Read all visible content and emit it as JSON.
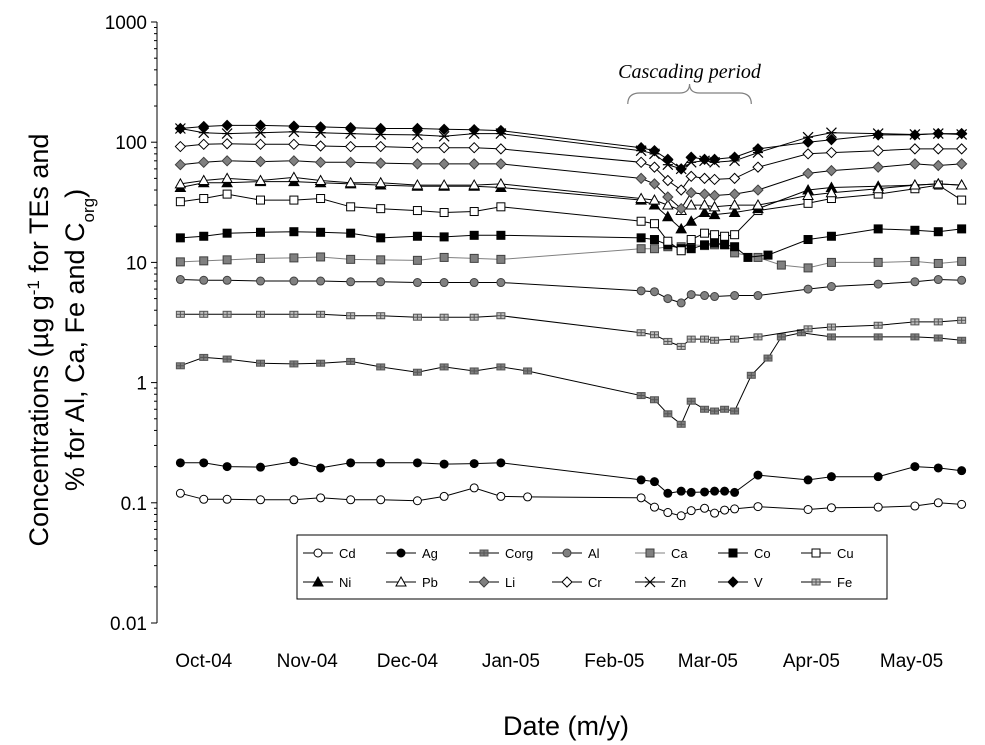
{
  "chart_data": {
    "type": "line",
    "title": "",
    "xlabel": "Date (m/y)",
    "ylabel": {
      "line1_a": "Concentrations (µg g",
      "line1_sup": "-1",
      "line1_b": " for TEs and",
      "line2_a": "% for Al, Ca, Fe and C",
      "line2_sub": "org",
      "line2_b": ")"
    },
    "y_scale": "log",
    "ylim": [
      0.01,
      1000
    ],
    "y_ticks": [
      {
        "value": 0.01,
        "label": "0.01"
      },
      {
        "value": 0.1,
        "label": "0.1"
      },
      {
        "value": 1,
        "label": "1"
      },
      {
        "value": 10,
        "label": "10"
      },
      {
        "value": 100,
        "label": "100"
      },
      {
        "value": 1000,
        "label": "1000"
      }
    ],
    "xlim": [
      "2004-09-24",
      "2005-05-27"
    ],
    "x_ticks": [
      {
        "date": "2004-10-08",
        "label": "Oct-04"
      },
      {
        "date": "2004-11-08",
        "label": "Nov-04"
      },
      {
        "date": "2004-12-08",
        "label": "Dec-04"
      },
      {
        "date": "2005-01-08",
        "label": "Jan-05"
      },
      {
        "date": "2005-02-08",
        "label": "Feb-05"
      },
      {
        "date": "2005-03-08",
        "label": "Mar-05"
      },
      {
        "date": "2005-04-08",
        "label": "Apr-05"
      },
      {
        "date": "2005-05-08",
        "label": "May-05"
      }
    ],
    "annotation": {
      "text": "Cascading period",
      "start": "2005-02-12",
      "end": "2005-03-21"
    },
    "legend_position": "bottom-inside",
    "series": [
      {
        "name": "Cd",
        "marker": "circle",
        "fill": "#ffffff",
        "stroke": "#000000",
        "line": "#000000",
        "x": [
          "2004-10-01",
          "2004-10-08",
          "2004-10-15",
          "2004-10-25",
          "2004-11-04",
          "2004-11-12",
          "2004-11-21",
          "2004-11-30",
          "2004-12-11",
          "2004-12-19",
          "2004-12-28",
          "2005-01-05",
          "2005-01-13",
          "2005-02-16",
          "2005-02-20",
          "2005-02-24",
          "2005-02-28",
          "2005-03-03",
          "2005-03-07",
          "2005-03-10",
          "2005-03-13",
          "2005-03-16",
          "2005-03-23",
          "2005-04-07",
          "2005-04-14",
          "2005-04-28",
          "2005-05-09",
          "2005-05-16",
          "2005-05-23"
        ],
        "y": [
          0.12,
          0.107,
          0.107,
          0.106,
          0.106,
          0.11,
          0.106,
          0.106,
          0.104,
          0.113,
          0.133,
          0.113,
          0.112,
          0.11,
          0.092,
          0.083,
          0.078,
          0.086,
          0.09,
          0.082,
          0.087,
          0.089,
          0.093,
          0.088,
          0.091,
          0.092,
          0.094,
          0.1,
          0.097
        ]
      },
      {
        "name": "Ag",
        "marker": "circle",
        "fill": "#000000",
        "stroke": "#000000",
        "line": "#000000",
        "x": [
          "2004-10-01",
          "2004-10-08",
          "2004-10-15",
          "2004-10-25",
          "2004-11-04",
          "2004-11-12",
          "2004-11-21",
          "2004-11-30",
          "2004-12-11",
          "2004-12-19",
          "2004-12-28",
          "2005-01-05",
          "2005-02-16",
          "2005-02-20",
          "2005-02-24",
          "2005-02-28",
          "2005-03-03",
          "2005-03-07",
          "2005-03-10",
          "2005-03-13",
          "2005-03-16",
          "2005-03-23",
          "2005-04-07",
          "2005-04-14",
          "2005-04-28",
          "2005-05-09",
          "2005-05-16",
          "2005-05-23"
        ],
        "y": [
          0.215,
          0.215,
          0.2,
          0.198,
          0.22,
          0.195,
          0.215,
          0.215,
          0.215,
          0.21,
          0.212,
          0.215,
          0.155,
          0.15,
          0.12,
          0.125,
          0.122,
          0.123,
          0.125,
          0.125,
          0.122,
          0.17,
          0.155,
          0.165,
          0.165,
          0.2,
          0.195,
          0.185
        ]
      },
      {
        "name": "Corg",
        "marker": "cross",
        "fill": "#808080",
        "stroke": "#555555",
        "line": "#000000",
        "x": [
          "2004-10-01",
          "2004-10-08",
          "2004-10-15",
          "2004-10-25",
          "2004-11-04",
          "2004-11-12",
          "2004-11-21",
          "2004-11-30",
          "2004-12-11",
          "2004-12-19",
          "2004-12-28",
          "2005-01-05",
          "2005-01-13",
          "2005-02-16",
          "2005-02-20",
          "2005-02-24",
          "2005-02-28",
          "2005-03-03",
          "2005-03-07",
          "2005-03-10",
          "2005-03-13",
          "2005-03-16",
          "2005-03-21",
          "2005-03-26",
          "2005-03-30",
          "2005-04-05",
          "2005-04-14",
          "2005-04-28",
          "2005-05-09",
          "2005-05-16",
          "2005-05-23"
        ],
        "y": [
          1.38,
          1.62,
          1.57,
          1.45,
          1.43,
          1.45,
          1.5,
          1.35,
          1.22,
          1.35,
          1.25,
          1.35,
          1.25,
          0.78,
          0.72,
          0.55,
          0.45,
          0.7,
          0.6,
          0.58,
          0.6,
          0.58,
          1.15,
          1.6,
          2.4,
          2.6,
          2.4,
          2.4,
          2.4,
          2.35,
          2.25
        ]
      },
      {
        "name": "Al",
        "marker": "circle",
        "fill": "#808080",
        "stroke": "#404040",
        "line": "#000000",
        "x": [
          "2004-10-01",
          "2004-10-08",
          "2004-10-15",
          "2004-10-25",
          "2004-11-04",
          "2004-11-12",
          "2004-11-21",
          "2004-11-30",
          "2004-12-11",
          "2004-12-19",
          "2004-12-28",
          "2005-01-05",
          "2005-02-16",
          "2005-02-20",
          "2005-02-24",
          "2005-02-28",
          "2005-03-03",
          "2005-03-07",
          "2005-03-10",
          "2005-03-16",
          "2005-03-23",
          "2005-04-07",
          "2005-04-14",
          "2005-04-28",
          "2005-05-09",
          "2005-05-16",
          "2005-05-23"
        ],
        "y": [
          7.2,
          7.1,
          7.1,
          7.0,
          7.0,
          7.0,
          6.9,
          6.9,
          6.8,
          6.8,
          6.8,
          6.8,
          5.8,
          5.7,
          5.0,
          4.6,
          5.4,
          5.3,
          5.2,
          5.3,
          5.3,
          6.0,
          6.3,
          6.6,
          6.9,
          7.2,
          7.1
        ]
      },
      {
        "name": "Ca",
        "marker": "square",
        "fill": "#808080",
        "stroke": "#404040",
        "line": "#808080",
        "x": [
          "2004-10-01",
          "2004-10-08",
          "2004-10-15",
          "2004-10-25",
          "2004-11-04",
          "2004-11-12",
          "2004-11-21",
          "2004-11-30",
          "2004-12-11",
          "2004-12-19",
          "2004-12-28",
          "2005-01-05",
          "2005-02-16",
          "2005-02-20",
          "2005-02-24",
          "2005-02-28",
          "2005-03-03",
          "2005-03-07",
          "2005-03-10",
          "2005-03-13",
          "2005-03-16",
          "2005-03-23",
          "2005-03-30",
          "2005-04-07",
          "2005-04-14",
          "2005-04-28",
          "2005-05-09",
          "2005-05-16",
          "2005-05-23"
        ],
        "y": [
          10.1,
          10.3,
          10.5,
          10.8,
          10.9,
          11.1,
          10.6,
          10.5,
          10.4,
          11.0,
          10.8,
          10.6,
          13.0,
          13.0,
          13.5,
          13.5,
          14.0,
          13.8,
          14.0,
          14.2,
          12.0,
          11.0,
          9.5,
          9.0,
          10.0,
          10.0,
          10.2,
          9.8,
          10.2
        ]
      },
      {
        "name": "Co",
        "marker": "square",
        "fill": "#000000",
        "stroke": "#000000",
        "line": "#000000",
        "x": [
          "2004-10-01",
          "2004-10-08",
          "2004-10-15",
          "2004-10-25",
          "2004-11-04",
          "2004-11-12",
          "2004-11-21",
          "2004-11-30",
          "2004-12-11",
          "2004-12-19",
          "2004-12-28",
          "2005-01-05",
          "2005-02-16",
          "2005-02-20",
          "2005-02-24",
          "2005-02-28",
          "2005-03-03",
          "2005-03-07",
          "2005-03-10",
          "2005-03-13",
          "2005-03-16",
          "2005-03-20",
          "2005-03-26",
          "2005-04-07",
          "2005-04-14",
          "2005-04-28",
          "2005-05-09",
          "2005-05-16",
          "2005-05-23"
        ],
        "y": [
          16.0,
          16.5,
          17.5,
          17.8,
          18.0,
          17.8,
          17.5,
          16.0,
          16.5,
          16.3,
          16.8,
          16.8,
          16.0,
          15.5,
          14.0,
          13.0,
          13.0,
          14.0,
          14.5,
          14.0,
          13.5,
          11.0,
          11.5,
          15.5,
          16.5,
          19.0,
          18.5,
          18.0,
          19.0
        ]
      },
      {
        "name": "Cu",
        "marker": "square",
        "fill": "#ffffff",
        "stroke": "#000000",
        "line": "#000000",
        "x": [
          "2004-10-01",
          "2004-10-08",
          "2004-10-15",
          "2004-10-25",
          "2004-11-04",
          "2004-11-12",
          "2004-11-21",
          "2004-11-30",
          "2004-12-11",
          "2004-12-19",
          "2004-12-28",
          "2005-01-05",
          "2005-02-16",
          "2005-02-20",
          "2005-02-24",
          "2005-02-28",
          "2005-03-03",
          "2005-03-07",
          "2005-03-10",
          "2005-03-13",
          "2005-03-16",
          "2005-03-23",
          "2005-04-07",
          "2005-04-14",
          "2005-04-28",
          "2005-05-09",
          "2005-05-16",
          "2005-05-23"
        ],
        "y": [
          32,
          34,
          37,
          33,
          33,
          34,
          29,
          28,
          27,
          26,
          26.5,
          29,
          22,
          21,
          15,
          12.5,
          15.5,
          17.5,
          17,
          16.5,
          17,
          27,
          31,
          34,
          37,
          41,
          44,
          33
        ]
      },
      {
        "name": "Ni",
        "marker": "triangle",
        "fill": "#000000",
        "stroke": "#000000",
        "line": "#000000",
        "x": [
          "2004-10-01",
          "2004-10-08",
          "2004-10-15",
          "2004-10-25",
          "2004-11-04",
          "2004-11-12",
          "2004-11-21",
          "2004-11-30",
          "2004-12-11",
          "2004-12-19",
          "2004-12-28",
          "2005-01-05",
          "2005-02-16",
          "2005-02-20",
          "2005-02-24",
          "2005-02-28",
          "2005-03-03",
          "2005-03-07",
          "2005-03-10",
          "2005-03-16",
          "2005-03-23",
          "2005-04-07",
          "2005-04-14",
          "2005-04-28",
          "2005-05-09",
          "2005-05-16",
          "2005-05-23"
        ],
        "y": [
          42,
          46,
          46,
          47,
          47,
          46,
          45,
          44,
          43,
          43,
          43,
          42,
          33,
          30,
          24,
          19,
          22,
          26,
          25,
          26,
          28,
          40,
          42,
          43,
          44,
          45,
          44
        ]
      },
      {
        "name": "Pb",
        "marker": "triangle",
        "fill": "#ffffff",
        "stroke": "#000000",
        "line": "#000000",
        "x": [
          "2004-10-01",
          "2004-10-08",
          "2004-10-15",
          "2004-10-25",
          "2004-11-04",
          "2004-11-12",
          "2004-11-21",
          "2004-11-30",
          "2004-12-11",
          "2004-12-19",
          "2004-12-28",
          "2005-01-05",
          "2005-02-16",
          "2005-02-20",
          "2005-02-24",
          "2005-02-28",
          "2005-03-03",
          "2005-03-07",
          "2005-03-10",
          "2005-03-16",
          "2005-03-23",
          "2005-04-07",
          "2005-04-14",
          "2005-04-28",
          "2005-05-09",
          "2005-05-16",
          "2005-05-23"
        ],
        "y": [
          45,
          48,
          50,
          48,
          51,
          48,
          46,
          46,
          44,
          44,
          44,
          45,
          34,
          33,
          30,
          27,
          30,
          30,
          29,
          30,
          30,
          36,
          38,
          41,
          44,
          45,
          44
        ]
      },
      {
        "name": "Li",
        "marker": "diamond",
        "fill": "#808080",
        "stroke": "#404040",
        "line": "#000000",
        "x": [
          "2004-10-01",
          "2004-10-08",
          "2004-10-15",
          "2004-10-25",
          "2004-11-04",
          "2004-11-12",
          "2004-11-21",
          "2004-11-30",
          "2004-12-11",
          "2004-12-19",
          "2004-12-28",
          "2005-01-05",
          "2005-02-16",
          "2005-02-20",
          "2005-02-24",
          "2005-02-28",
          "2005-03-03",
          "2005-03-07",
          "2005-03-10",
          "2005-03-16",
          "2005-03-23",
          "2005-04-07",
          "2005-04-14",
          "2005-04-28",
          "2005-05-09",
          "2005-05-16",
          "2005-05-23"
        ],
        "y": [
          65,
          68,
          70,
          69,
          70,
          68,
          68,
          67,
          66,
          66,
          66,
          66,
          50,
          45,
          35,
          28,
          38,
          37,
          36,
          37,
          40,
          55,
          58,
          62,
          66,
          64,
          66
        ]
      },
      {
        "name": "Cr",
        "marker": "diamond",
        "fill": "#ffffff",
        "stroke": "#000000",
        "line": "#000000",
        "x": [
          "2004-10-01",
          "2004-10-08",
          "2004-10-15",
          "2004-10-25",
          "2004-11-04",
          "2004-11-12",
          "2004-11-21",
          "2004-11-30",
          "2004-12-11",
          "2004-12-19",
          "2004-12-28",
          "2005-01-05",
          "2005-02-16",
          "2005-02-20",
          "2005-02-24",
          "2005-02-28",
          "2005-03-03",
          "2005-03-07",
          "2005-03-10",
          "2005-03-16",
          "2005-03-23",
          "2005-04-07",
          "2005-04-14",
          "2005-04-28",
          "2005-05-09",
          "2005-05-16",
          "2005-05-23"
        ],
        "y": [
          92,
          96,
          97,
          96,
          96,
          93,
          92,
          92,
          90,
          90,
          90,
          88,
          68,
          62,
          48,
          40,
          52,
          50,
          49,
          50,
          62,
          80,
          82,
          85,
          88,
          88,
          88
        ]
      },
      {
        "name": "Zn",
        "marker": "asterisk",
        "fill": "none",
        "stroke": "#000000",
        "line": "#000000",
        "x": [
          "2004-10-01",
          "2004-10-08",
          "2004-10-15",
          "2004-10-25",
          "2004-11-04",
          "2004-11-12",
          "2004-11-21",
          "2004-11-30",
          "2004-12-11",
          "2004-12-19",
          "2004-12-28",
          "2005-01-05",
          "2005-02-16",
          "2005-02-20",
          "2005-02-24",
          "2005-02-28",
          "2005-03-03",
          "2005-03-07",
          "2005-03-10",
          "2005-03-16",
          "2005-03-23",
          "2005-04-07",
          "2005-04-14",
          "2005-04-28",
          "2005-05-09",
          "2005-05-16",
          "2005-05-23"
        ],
        "y": [
          130,
          120,
          118,
          120,
          122,
          120,
          118,
          116,
          115,
          112,
          118,
          118,
          85,
          80,
          65,
          60,
          68,
          70,
          68,
          70,
          82,
          110,
          120,
          118,
          116,
          118,
          116
        ]
      },
      {
        "name": "V",
        "marker": "diamond",
        "fill": "#000000",
        "stroke": "#000000",
        "line": "#000000",
        "x": [
          "2004-10-01",
          "2004-10-08",
          "2004-10-15",
          "2004-10-25",
          "2004-11-04",
          "2004-11-12",
          "2004-11-21",
          "2004-11-30",
          "2004-12-11",
          "2004-12-19",
          "2004-12-28",
          "2005-01-05",
          "2005-02-16",
          "2005-02-20",
          "2005-02-24",
          "2005-02-28",
          "2005-03-03",
          "2005-03-07",
          "2005-03-10",
          "2005-03-16",
          "2005-03-23",
          "2005-04-07",
          "2005-04-14",
          "2005-04-28",
          "2005-05-09",
          "2005-05-16",
          "2005-05-23"
        ],
        "y": [
          130,
          135,
          138,
          138,
          136,
          134,
          132,
          130,
          130,
          128,
          127,
          125,
          90,
          85,
          72,
          60,
          75,
          72,
          72,
          75,
          88,
          100,
          105,
          115,
          115,
          118,
          118
        ]
      },
      {
        "name": "Fe",
        "marker": "cross",
        "fill": "#c0c0c0",
        "stroke": "#555555",
        "line": "#000000",
        "x": [
          "2004-10-01",
          "2004-10-08",
          "2004-10-15",
          "2004-10-25",
          "2004-11-04",
          "2004-11-12",
          "2004-11-21",
          "2004-11-30",
          "2004-12-11",
          "2004-12-19",
          "2004-12-28",
          "2005-01-05",
          "2005-02-16",
          "2005-02-20",
          "2005-02-24",
          "2005-02-28",
          "2005-03-03",
          "2005-03-07",
          "2005-03-10",
          "2005-03-16",
          "2005-03-23",
          "2005-04-07",
          "2005-04-14",
          "2005-04-28",
          "2005-05-09",
          "2005-05-16",
          "2005-05-23"
        ],
        "y": [
          3.7,
          3.7,
          3.7,
          3.7,
          3.7,
          3.7,
          3.6,
          3.6,
          3.5,
          3.5,
          3.5,
          3.6,
          2.6,
          2.5,
          2.2,
          2.0,
          2.3,
          2.3,
          2.25,
          2.3,
          2.4,
          2.8,
          2.9,
          3.0,
          3.2,
          3.2,
          3.3
        ]
      }
    ]
  }
}
